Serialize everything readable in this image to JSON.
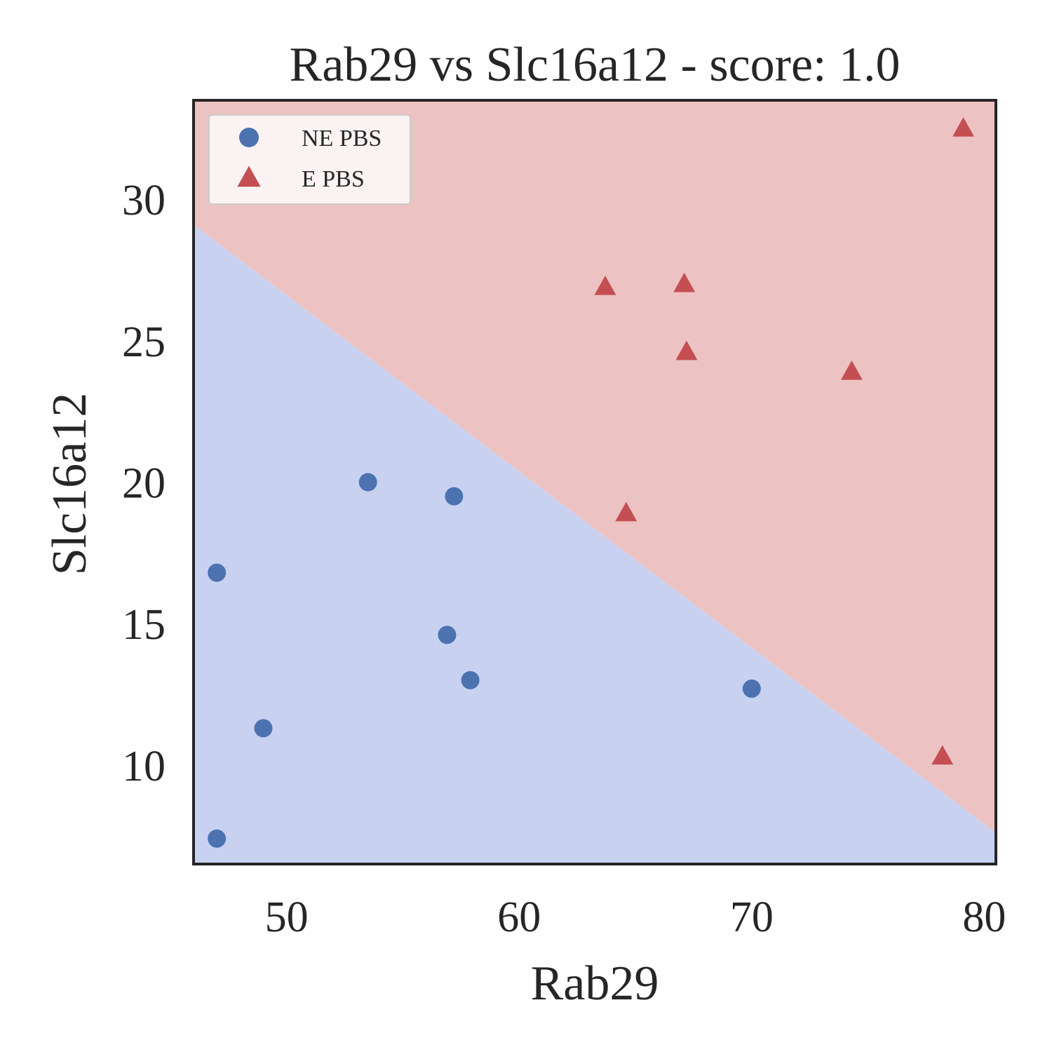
{
  "chart_data": {
    "type": "scatter",
    "title": "Rab29 vs Slc16a12 - score: 1.0",
    "xlabel": "Rab29",
    "ylabel": "Slc16a12",
    "xlim": [
      46.0,
      80.5
    ],
    "ylim": [
      6.5,
      33.5
    ],
    "xticks": [
      50,
      60,
      70,
      80
    ],
    "yticks": [
      10,
      15,
      20,
      25,
      30
    ],
    "grid": false,
    "legend_position": "upper left",
    "decision_boundary": {
      "points": [
        [
          46.0,
          29.1
        ],
        [
          80.5,
          7.6
        ]
      ],
      "upper_region_color": "#ecc3c2",
      "lower_region_color": "#c9d1f1"
    },
    "series": [
      {
        "name": "NE PBS",
        "marker": "circle",
        "color": "#4c72b0",
        "points": [
          [
            47.0,
            16.8
          ],
          [
            47.0,
            7.4
          ],
          [
            49.0,
            11.3
          ],
          [
            53.5,
            20.0
          ],
          [
            56.9,
            14.6
          ],
          [
            57.2,
            19.5
          ],
          [
            57.9,
            13.0
          ],
          [
            70.0,
            12.7
          ]
        ]
      },
      {
        "name": "E PBS",
        "marker": "triangle",
        "color": "#c44e52",
        "points": [
          [
            63.7,
            26.9
          ],
          [
            64.6,
            18.9
          ],
          [
            67.1,
            27.0
          ],
          [
            67.2,
            24.6
          ],
          [
            74.3,
            23.9
          ],
          [
            78.2,
            10.3
          ],
          [
            79.1,
            32.5
          ]
        ]
      }
    ]
  }
}
